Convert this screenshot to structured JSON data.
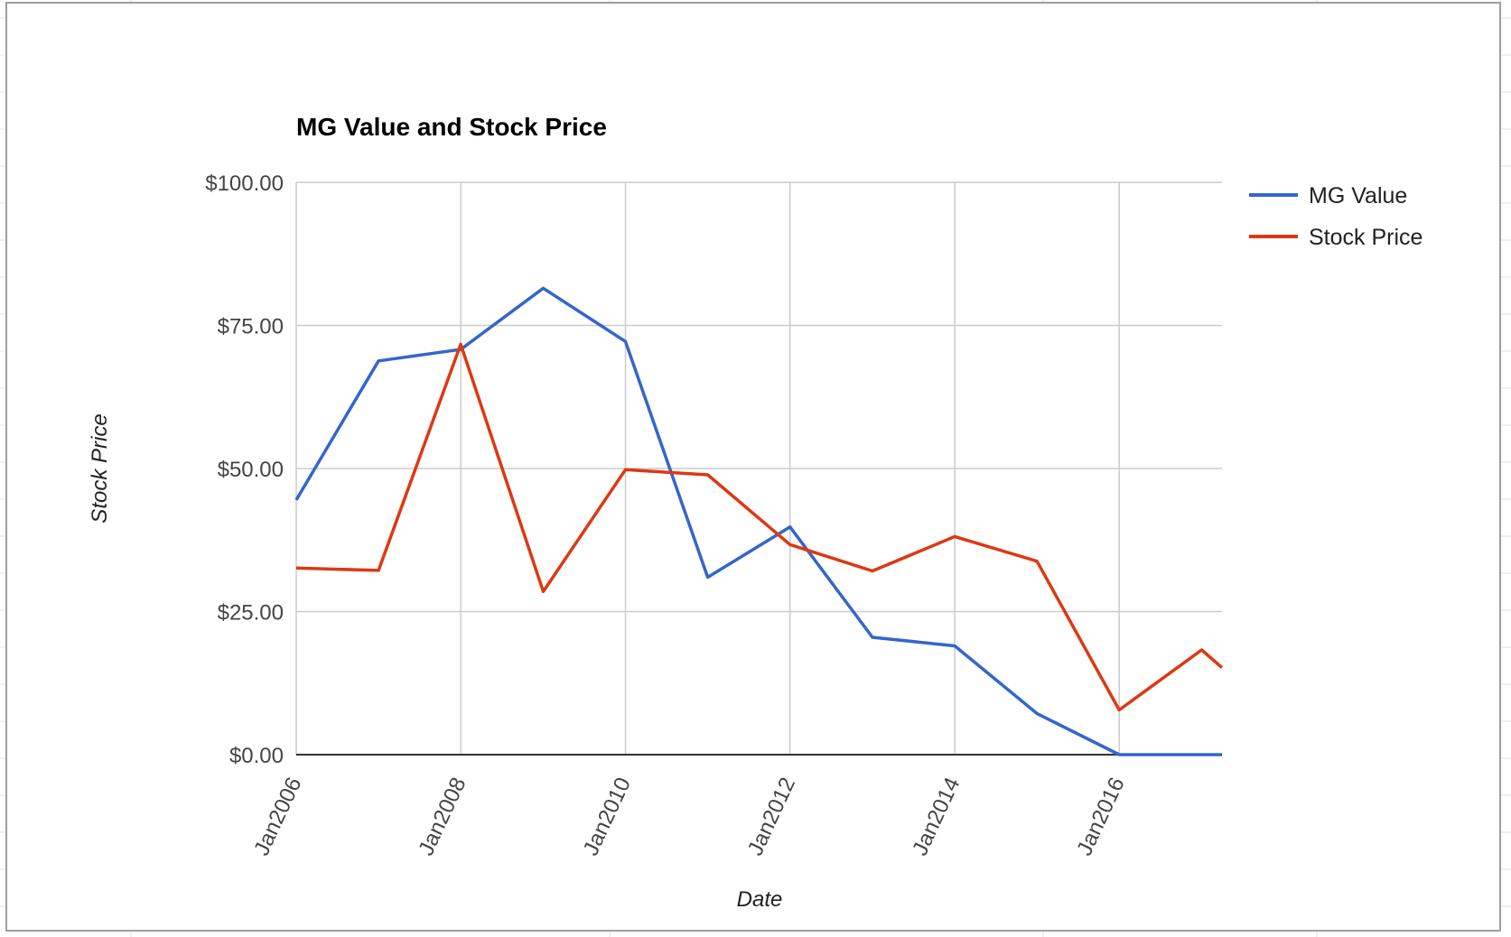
{
  "chart_data": {
    "type": "line",
    "title": "MG Value and Stock Price",
    "xlabel": "Date",
    "ylabel": "Stock Price",
    "x_ticks": [
      "Jan2006",
      "Jan2008",
      "Jan2010",
      "Jan2012",
      "Jan2014",
      "Jan2016"
    ],
    "y_ticks": [
      "$0.00",
      "$25.00",
      "$50.00",
      "$75.00",
      "$100.00"
    ],
    "ylim": [
      0,
      100
    ],
    "xlim": [
      "2006-01-01",
      "2017-04-01"
    ],
    "grid": true,
    "legend_position": "right",
    "x": [
      "2006-01-01",
      "2007-01-01",
      "2008-01-01",
      "2009-01-01",
      "2010-01-01",
      "2011-01-01",
      "2012-01-01",
      "2013-01-01",
      "2014-01-01",
      "2015-01-01",
      "2016-01-01",
      "2017-01-01",
      "2017-04-01"
    ],
    "series": [
      {
        "name": "MG Value",
        "color": "#3366cc",
        "values": [
          44.5,
          68.8,
          70.8,
          81.5,
          72.2,
          31.0,
          39.8,
          20.5,
          19.0,
          7.2,
          0.0,
          0.0,
          0.0
        ]
      },
      {
        "name": "Stock Price",
        "color": "#dc3912",
        "values": [
          32.6,
          32.2,
          71.7,
          28.5,
          49.8,
          48.9,
          36.7,
          32.1,
          38.1,
          33.8,
          7.8,
          18.3,
          15.2
        ]
      }
    ]
  }
}
